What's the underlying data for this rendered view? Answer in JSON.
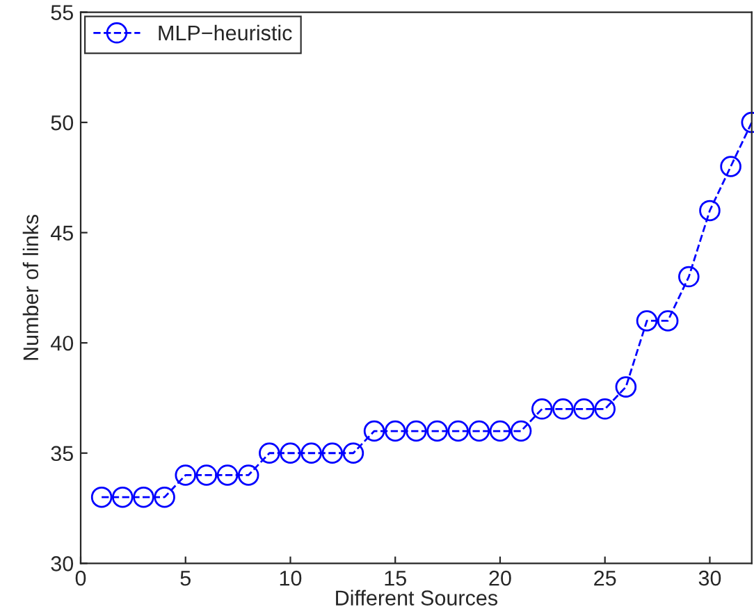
{
  "chart_data": {
    "type": "line",
    "xlabel": "Different Sources",
    "ylabel": "Number of links",
    "x": [
      1,
      2,
      3,
      4,
      5,
      6,
      7,
      8,
      9,
      10,
      11,
      12,
      13,
      14,
      15,
      16,
      17,
      18,
      19,
      20,
      21,
      22,
      23,
      24,
      25,
      26,
      27,
      28,
      29,
      30,
      31,
      32
    ],
    "series": [
      {
        "name": "MLP−heuristic",
        "color": "#0000ff",
        "values": [
          33,
          33,
          33,
          33,
          34,
          34,
          34,
          34,
          35,
          35,
          35,
          35,
          35,
          36,
          36,
          36,
          36,
          36,
          36,
          36,
          36,
          37,
          37,
          37,
          37,
          38,
          41,
          41,
          43,
          46,
          48,
          50
        ]
      }
    ],
    "xlim": [
      0,
      32
    ],
    "ylim": [
      30,
      55
    ],
    "xticks": [
      0,
      5,
      10,
      15,
      20,
      25,
      30
    ],
    "yticks": [
      30,
      35,
      40,
      45,
      50,
      55
    ],
    "legend": "top left",
    "marker": "circle",
    "line_style": "dashed",
    "grid": false
  }
}
